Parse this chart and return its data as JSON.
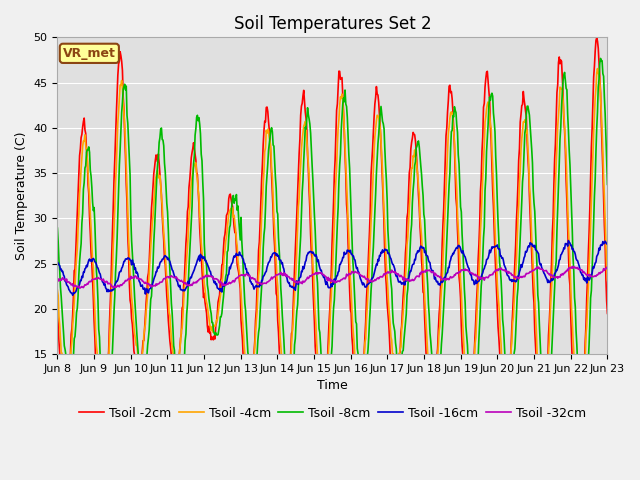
{
  "title": "Soil Temperatures Set 2",
  "xlabel": "Time",
  "ylabel": "Soil Temperature (C)",
  "ylim": [
    15,
    50
  ],
  "yticks": [
    15,
    20,
    25,
    30,
    35,
    40,
    45,
    50
  ],
  "x_labels": [
    "Jun 8",
    "Jun 9",
    "Jun 10",
    "Jun 11",
    "Jun 12",
    "Jun 13",
    "Jun 14",
    "Jun 15",
    "Jun 16",
    "Jun 17",
    "Jun 18",
    "Jun 19",
    "Jun 20",
    "Jun 21",
    "Jun 22",
    "Jun 23"
  ],
  "annotation_text": "VR_met",
  "annotation_color": "#8B4513",
  "annotation_bg": "#FFFF99",
  "annotation_border": "#8B4513",
  "fig_bg": "#F0F0F0",
  "plot_bg": "#E0E0E0",
  "grid_color": "#FFFFFF",
  "series": [
    {
      "label": "Tsoil -2cm",
      "color": "#FF0000",
      "lw": 1.2
    },
    {
      "label": "Tsoil -4cm",
      "color": "#FFA500",
      "lw": 1.2
    },
    {
      "label": "Tsoil -8cm",
      "color": "#00BB00",
      "lw": 1.2
    },
    {
      "label": "Tsoil -16cm",
      "color": "#0000CC",
      "lw": 1.2
    },
    {
      "label": "Tsoil -32cm",
      "color": "#BB00BB",
      "lw": 1.2
    }
  ],
  "title_fontsize": 12,
  "axis_label_fontsize": 9,
  "tick_fontsize": 8,
  "legend_fontsize": 9,
  "figsize": [
    6.4,
    4.8
  ],
  "dpi": 100
}
